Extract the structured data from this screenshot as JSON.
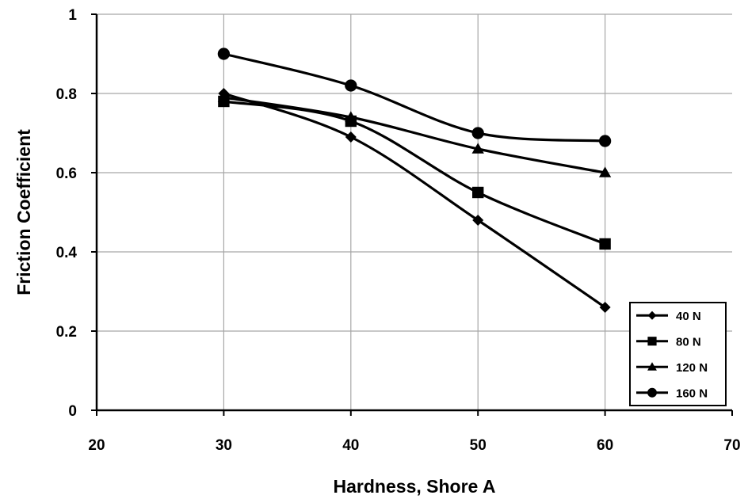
{
  "chart_data": {
    "type": "line",
    "title": "",
    "xlabel": "Hardness, Shore A",
    "ylabel": "Friction Coefficient",
    "xlim": [
      20,
      70
    ],
    "ylim": [
      0,
      1
    ],
    "x_ticks": [
      20,
      30,
      40,
      50,
      60,
      70
    ],
    "y_ticks": [
      0,
      0.2,
      0.4,
      0.6,
      0.8,
      1
    ],
    "y_tick_labels": [
      "0",
      "0.2",
      "0.4",
      "0.6",
      "0.8",
      "1"
    ],
    "x": [
      30,
      40,
      50,
      60
    ],
    "grid": true,
    "legend_position": "bottom-right",
    "series": [
      {
        "name": "40 N",
        "marker": "diamond",
        "values": [
          0.8,
          0.69,
          0.48,
          0.26
        ]
      },
      {
        "name": "80 N",
        "marker": "square",
        "values": [
          0.78,
          0.73,
          0.55,
          0.42
        ]
      },
      {
        "name": "120 N",
        "marker": "triangle",
        "values": [
          0.79,
          0.74,
          0.66,
          0.6
        ]
      },
      {
        "name": "160 N",
        "marker": "circle",
        "values": [
          0.9,
          0.82,
          0.7,
          0.68
        ]
      }
    ],
    "colors": {
      "line": "#000000",
      "grid": "#a6a6a6",
      "background": "#ffffff"
    }
  }
}
